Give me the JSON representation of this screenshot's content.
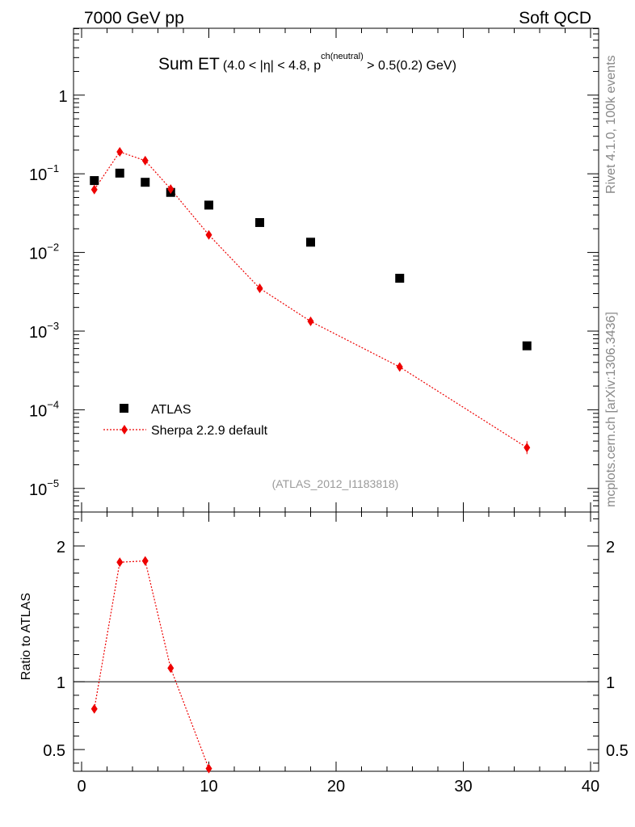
{
  "header": {
    "left": "7000 GeV pp",
    "right": "Soft QCD"
  },
  "side_labels": {
    "top": "Rivet 4.1.0,  100k events",
    "bottom": "mcplots.cern.ch [arXiv:1306.3436]"
  },
  "chart_data": {
    "type": "scatter",
    "title_main": "Sum ET",
    "title_sub_1": "(4.0 < |",
    "title_eta": "η",
    "title_sub_2": "| < 4.8, p",
    "title_sup": "ch(neutral)",
    "title_sub_3": " > 0.5(0.2) GeV)",
    "watermark": "(ATLAS_2012_I1183818)",
    "xlim": [
      0,
      40
    ],
    "xticks": [
      "0",
      "10",
      "20",
      "30",
      "40"
    ],
    "main_ylim_log10": [
      -5.3,
      0.85
    ],
    "main_yticks": [
      {
        "base": "1",
        "exp": ""
      },
      {
        "base": "10",
        "exp": "−1"
      },
      {
        "base": "10",
        "exp": "−2"
      },
      {
        "base": "10",
        "exp": "−3"
      },
      {
        "base": "10",
        "exp": "−4"
      },
      {
        "base": "10",
        "exp": "−5"
      }
    ],
    "ratio_ylabel": "Ratio to ATLAS",
    "ratio_ylim": [
      0.34,
      2.25
    ],
    "ratio_yticks": [
      "0.5",
      "1",
      "2"
    ],
    "legend": {
      "atlas": "ATLAS",
      "sherpa": "Sherpa 2.2.9 default"
    },
    "series": [
      {
        "name": "ATLAS",
        "color": "#000000",
        "x": [
          1,
          3,
          5,
          7,
          10,
          14,
          18,
          25,
          35
        ],
        "y": [
          0.082,
          0.102,
          0.078,
          0.058,
          0.04,
          0.024,
          0.0135,
          0.0047,
          0.00065
        ]
      },
      {
        "name": "Sherpa 2.2.9 default",
        "color": "#ee0000",
        "x": [
          1,
          3,
          5,
          7,
          10,
          14,
          18,
          25,
          35
        ],
        "y": [
          0.063,
          0.19,
          0.147,
          0.064,
          0.0167,
          0.0035,
          0.00133,
          0.00035,
          3.3e-05
        ]
      }
    ],
    "ratio": {
      "x": [
        1,
        3,
        5,
        7,
        10
      ],
      "y": [
        0.8,
        1.88,
        1.89,
        1.1,
        0.36
      ]
    }
  }
}
